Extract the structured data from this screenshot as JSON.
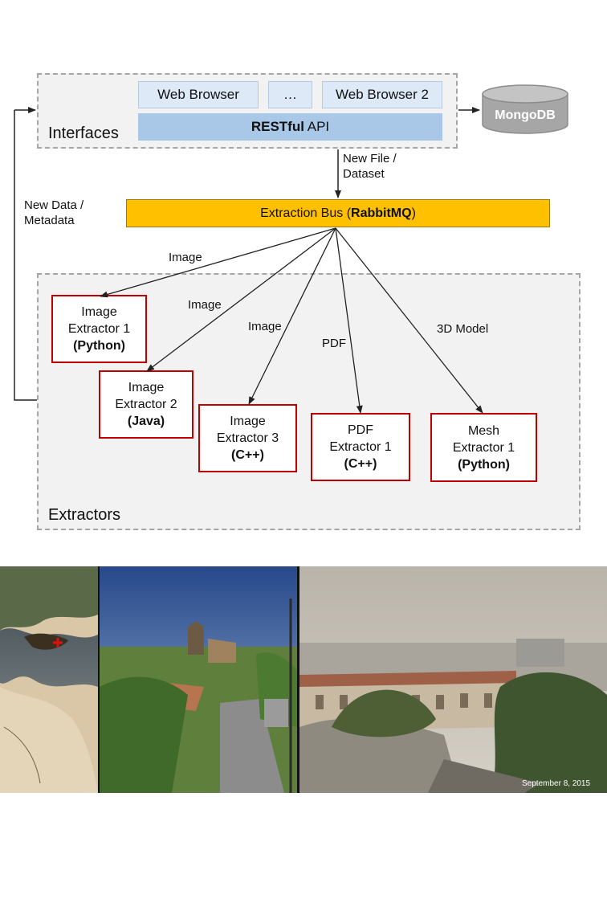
{
  "interfaces": {
    "label": "Interfaces",
    "web_browser_1": "Web Browser",
    "ellipsis": "…",
    "web_browser_2": "Web Browser 2",
    "api_bold": "RESTful",
    "api_rest": " API"
  },
  "database": {
    "label": "MongoDB"
  },
  "bus": {
    "prefix": "Extraction Bus (",
    "bold": "RabbitMQ",
    "suffix": ")"
  },
  "edge_labels": {
    "new_file": "New File /",
    "dataset": "Dataset",
    "new_data": "New Data /",
    "metadata": "Metadata",
    "image_1": "Image",
    "image_2": "Image",
    "image_3": "Image",
    "pdf": "PDF",
    "model_3d": "3D Model"
  },
  "extractors": {
    "label": "Extractors",
    "items": [
      {
        "line1": "Image",
        "line2": "Extractor 1",
        "lang": "(Python)"
      },
      {
        "line1": "Image",
        "line2": "Extractor 2",
        "lang": "(Java)"
      },
      {
        "line1": "Image",
        "line2": "Extractor 3",
        "lang": "(C++)"
      },
      {
        "line1": "PDF",
        "line2": "Extractor 1",
        "lang": "(C++)"
      },
      {
        "line1": "Mesh",
        "line2": "Extractor 1",
        "lang": "(Python)"
      }
    ]
  },
  "photos": {
    "date": "September 8, 2015"
  },
  "colors": {
    "bus": "#ffc000",
    "extractor_border": "#c00000",
    "api": "#a9c8e8",
    "browser": "#dde9f6",
    "database": "#a6a6a6"
  }
}
